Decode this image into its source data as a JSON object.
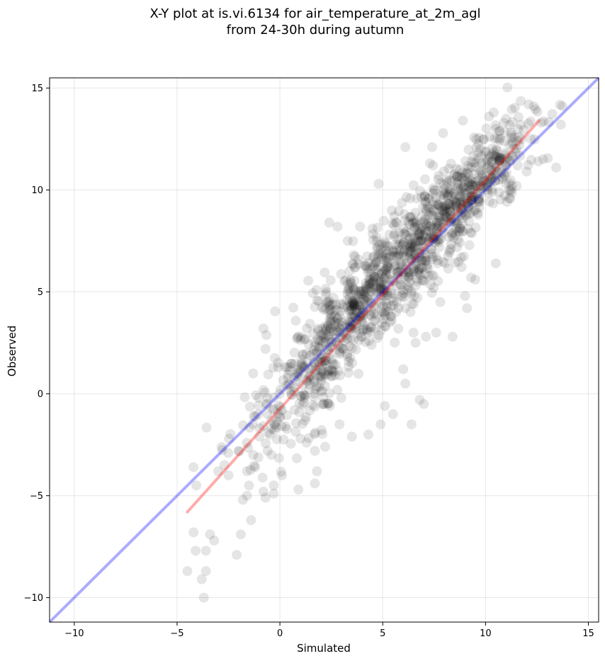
{
  "chart_data": {
    "type": "scatter",
    "title_line1": "X-Y plot at is.vi.6134 for air_temperature_at_2m_agl",
    "title_line2": "from 24-30h during autumn",
    "xlabel": "Simulated",
    "ylabel": "Observed",
    "xlim": [
      -11.2,
      15.5
    ],
    "ylim": [
      -11.2,
      15.5
    ],
    "xticks": [
      -10,
      -5,
      0,
      5,
      10,
      15
    ],
    "yticks": [
      -10,
      -5,
      0,
      5,
      10,
      15
    ],
    "xtick_labels": [
      "−10",
      "−5",
      "0",
      "5",
      "10",
      "15"
    ],
    "ytick_labels": [
      "−10",
      "−5",
      "0",
      "5",
      "10",
      "15"
    ],
    "grid": true,
    "point_color": "#000000",
    "point_alpha": 0.1,
    "identity_line": {
      "x": [
        -11.2,
        15.5
      ],
      "y": [
        -11.2,
        15.5
      ],
      "color": "#0000ff",
      "alpha": 0.33
    },
    "fit_line": {
      "x": [
        -4.5,
        12.6
      ],
      "y": [
        -5.8,
        13.4
      ],
      "color": "#ff0000",
      "alpha": 0.33
    },
    "clusters": [
      {
        "cx": 6.0,
        "cy": 6.6,
        "slope": 0.97,
        "spread_x": 2.9,
        "spread_y": 1.3,
        "n": 900
      },
      {
        "cx": 1.8,
        "cy": 1.4,
        "slope": 1.0,
        "spread_x": 1.6,
        "spread_y": 1.4,
        "n": 260
      },
      {
        "cx": 9.6,
        "cy": 10.5,
        "slope": 1.0,
        "spread_x": 1.1,
        "spread_y": 0.9,
        "n": 160
      }
    ],
    "sparse_points": [
      [
        -4.5,
        -8.7
      ],
      [
        -4.2,
        -6.8
      ],
      [
        -4.1,
        -7.7
      ],
      [
        -3.8,
        -9.1
      ],
      [
        -3.7,
        -10.0
      ],
      [
        -3.6,
        -8.7
      ],
      [
        -3.6,
        -7.7
      ],
      [
        -3.4,
        -6.9
      ],
      [
        -3.2,
        -7.2
      ],
      [
        -4.2,
        -3.6
      ],
      [
        -3.0,
        -3.8
      ],
      [
        -2.7,
        -3.5
      ],
      [
        -2.5,
        -4.0
      ],
      [
        -1.9,
        -6.9
      ],
      [
        -2.1,
        -7.9
      ],
      [
        -1.8,
        -5.2
      ],
      [
        -1.6,
        -5.0
      ],
      [
        -1.5,
        -4.5
      ],
      [
        -1.4,
        -6.2
      ],
      [
        -1.6,
        -3.8
      ],
      [
        -1.2,
        -3.6
      ],
      [
        -0.8,
        -4.8
      ],
      [
        -0.7,
        -5.1
      ],
      [
        -0.3,
        -4.5
      ],
      [
        -0.3,
        -4.9
      ],
      [
        0.1,
        -4.0
      ],
      [
        -0.6,
        -2.8
      ],
      [
        -1.3,
        -3.0
      ],
      [
        -1.0,
        -2.1
      ],
      [
        -1.2,
        -1.1
      ],
      [
        -0.8,
        3.2
      ],
      [
        -0.7,
        2.2
      ],
      [
        -1.3,
        1.0
      ],
      [
        -0.6,
        -0.2
      ],
      [
        0.9,
        -4.7
      ],
      [
        1.8,
        -3.8
      ],
      [
        1.7,
        -4.4
      ],
      [
        1.7,
        -2.8
      ],
      [
        2.4,
        8.4
      ],
      [
        2.8,
        8.2
      ],
      [
        3.3,
        7.5
      ],
      [
        3.9,
        8.2
      ],
      [
        4.5,
        8.1
      ],
      [
        4.8,
        10.3
      ],
      [
        6.1,
        12.1
      ],
      [
        7.4,
        12.1
      ],
      [
        8.9,
        13.4
      ],
      [
        10.4,
        13.8
      ],
      [
        11.0,
        13.5
      ],
      [
        12.1,
        14.2
      ],
      [
        12.2,
        12.5
      ],
      [
        12.7,
        13.3
      ],
      [
        10.5,
        6.4
      ],
      [
        9.5,
        5.6
      ],
      [
        9.1,
        4.2
      ],
      [
        9.0,
        4.8
      ],
      [
        7.6,
        3.0
      ],
      [
        7.1,
        2.8
      ],
      [
        6.6,
        2.5
      ],
      [
        6.1,
        0.5
      ],
      [
        5.5,
        -1.0
      ],
      [
        6.4,
        -1.5
      ],
      [
        7.0,
        -0.5
      ],
      [
        6.8,
        -0.3
      ],
      [
        5.1,
        -0.6
      ],
      [
        4.9,
        -1.5
      ],
      [
        4.3,
        -2.0
      ],
      [
        3.5,
        -2.1
      ],
      [
        2.9,
        -1.5
      ],
      [
        2.2,
        -2.6
      ],
      [
        1.3,
        -2.4
      ],
      [
        1.0,
        -2.2
      ],
      [
        12.0,
        10.9
      ],
      [
        11.0,
        10.3
      ],
      [
        11.6,
        12.6
      ],
      [
        8.4,
        2.8
      ],
      [
        7.8,
        4.5
      ],
      [
        9.3,
        5.7
      ],
      [
        6.0,
        1.2
      ],
      [
        6.5,
        3.0
      ]
    ]
  }
}
